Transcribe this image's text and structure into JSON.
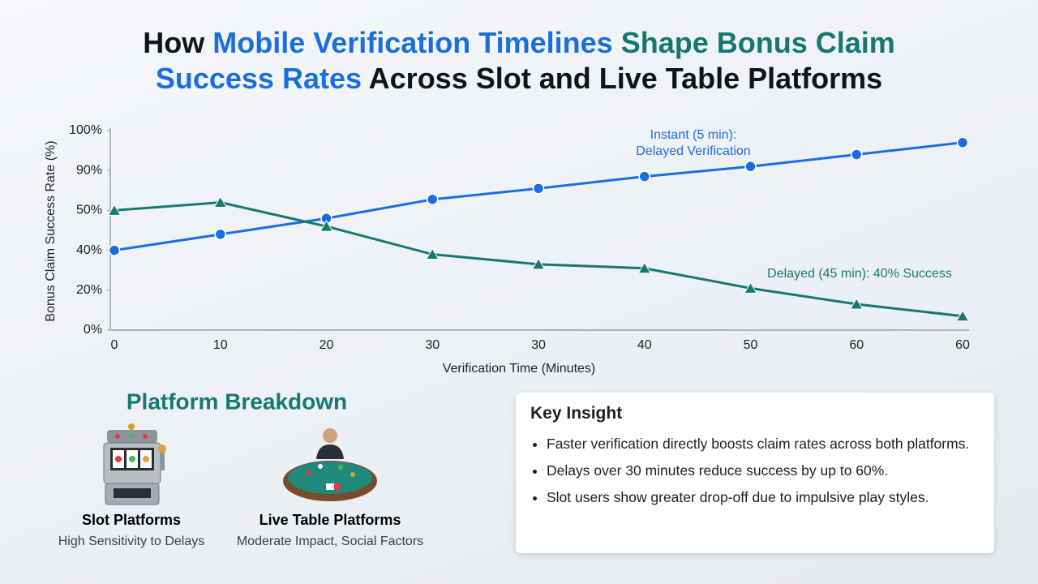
{
  "title_lines": [
    [
      {
        "text": "How ",
        "color": "#111418"
      },
      {
        "text": "Mobile Verification Timelines ",
        "color": "#1a6fe0"
      },
      {
        "text": "Shape Bonus Claim",
        "color": "#13786e"
      }
    ],
    [
      {
        "text": "Success Rates",
        "color": "#1a6fe0"
      },
      {
        "text": " Across Slot and Live Table Platforms",
        "color": "#111418"
      }
    ]
  ],
  "chart_data": {
    "type": "line",
    "x_label": "Verification Time (Minutes)",
    "y_label": "Bonus Claim Success Rate (%)",
    "categories": [
      "0",
      "10",
      "20",
      "30",
      "30",
      "40",
      "50",
      "60",
      "60"
    ],
    "ylim": [
      0,
      100
    ],
    "yticks": [
      {
        "value": 0,
        "label": "0%"
      },
      {
        "value": 20,
        "label": "20%"
      },
      {
        "value": 40,
        "label": "40%"
      },
      {
        "value": 50,
        "label": "50%"
      },
      {
        "value": 90,
        "label": "90%"
      },
      {
        "value": 100,
        "label": "100%"
      }
    ],
    "series": [
      {
        "color": "#1a6fe0",
        "marker": "circle",
        "values": [
          40,
          44,
          48,
          61,
          72,
          84,
          91,
          94,
          97
        ]
      },
      {
        "color": "#157a6e",
        "marker": "triangle",
        "values": [
          50,
          58,
          46,
          38,
          33,
          31,
          21,
          13,
          7
        ]
      }
    ],
    "annotations": [
      {
        "text": "Instant (5 min):",
        "color": "#1a6fe0"
      },
      {
        "text": "Delayed Verification",
        "color": "#1a6fe0"
      },
      {
        "text": "Delayed (45 min): 40% Success",
        "color": "#157a6e"
      }
    ]
  },
  "platform_breakdown": {
    "title": "Platform Breakdown",
    "items": [
      {
        "name": "Slot Platforms",
        "desc": "High Sensitivity to Delays"
      },
      {
        "name": "Live Table Platforms",
        "desc": "Moderate Impact, Social Factors"
      }
    ]
  },
  "key_insight": {
    "title": "Key Insight",
    "bullets": [
      "Faster verification directly boosts claim rates across both platforms.",
      "Delays over 30 minutes reduce success by up to 60%.",
      "Slot users show greater drop-off due to impulsive play styles."
    ]
  }
}
